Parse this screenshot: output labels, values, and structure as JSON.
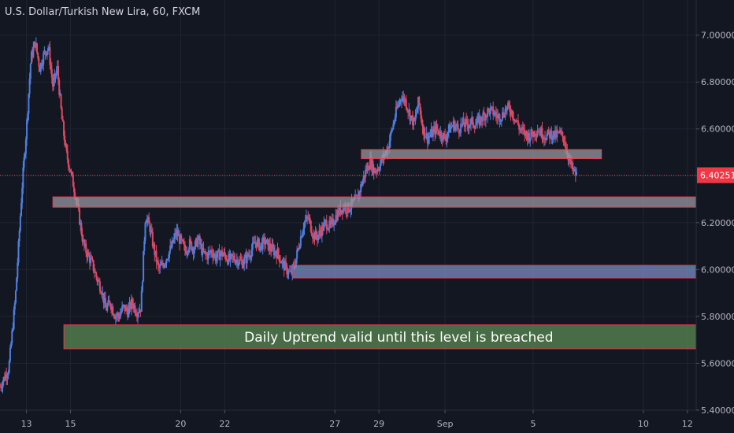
{
  "chart_data": {
    "type": "candlestick",
    "title": "U.S. Dollar/Turkish New Lira, 60, FXCM",
    "y_ticks": [
      5.4,
      5.6,
      5.8,
      6.0,
      6.2,
      6.4,
      6.6,
      6.8,
      7.0
    ],
    "y_tick_labels": [
      "5.40000",
      "5.60000",
      "5.80000",
      "6.00000",
      "6.20000",
      "6.40000",
      "6.60000",
      "6.80000",
      "7.00000"
    ],
    "ylim": [
      5.4,
      7.15
    ],
    "x_ticks": [
      {
        "label": "13",
        "day": 13
      },
      {
        "label": "15",
        "day": 15
      },
      {
        "label": "20",
        "day": 20
      },
      {
        "label": "22",
        "day": 22
      },
      {
        "label": "27",
        "day": 27
      },
      {
        "label": "29",
        "day": 29
      },
      {
        "label": "Sep",
        "day": 32
      },
      {
        "label": "5",
        "day": 36
      },
      {
        "label": "10",
        "day": 41
      },
      {
        "label": "12",
        "day": 43
      }
    ],
    "xlim": [
      11.8,
      43.4
    ],
    "current_price": 6.40251,
    "current_price_label": "6.40251",
    "price_path": [
      [
        11.8,
        5.5
      ],
      [
        12.2,
        5.58
      ],
      [
        12.5,
        5.88
      ],
      [
        12.8,
        6.35
      ],
      [
        13.0,
        6.6
      ],
      [
        13.2,
        6.9
      ],
      [
        13.4,
        6.97
      ],
      [
        13.6,
        6.86
      ],
      [
        13.8,
        6.92
      ],
      [
        14.0,
        6.95
      ],
      [
        14.2,
        6.78
      ],
      [
        14.4,
        6.86
      ],
      [
        14.6,
        6.65
      ],
      [
        14.8,
        6.5
      ],
      [
        15.0,
        6.42
      ],
      [
        15.2,
        6.33
      ],
      [
        15.4,
        6.22
      ],
      [
        15.6,
        6.1
      ],
      [
        15.8,
        6.06
      ],
      [
        16.0,
        6.02
      ],
      [
        16.2,
        5.96
      ],
      [
        16.4,
        5.92
      ],
      [
        16.6,
        5.83
      ],
      [
        16.8,
        5.86
      ],
      [
        17.0,
        5.81
      ],
      [
        17.2,
        5.8
      ],
      [
        17.4,
        5.84
      ],
      [
        17.6,
        5.82
      ],
      [
        17.8,
        5.86
      ],
      [
        18.0,
        5.82
      ],
      [
        18.2,
        5.84
      ],
      [
        18.4,
        6.23
      ],
      [
        18.6,
        6.18
      ],
      [
        18.8,
        6.08
      ],
      [
        19.0,
        6.0
      ],
      [
        19.2,
        6.02
      ],
      [
        19.4,
        6.06
      ],
      [
        19.6,
        6.1
      ],
      [
        19.8,
        6.16
      ],
      [
        20.0,
        6.12
      ],
      [
        20.2,
        6.08
      ],
      [
        20.4,
        6.11
      ],
      [
        20.6,
        6.09
      ],
      [
        20.8,
        6.13
      ],
      [
        21.0,
        6.07
      ],
      [
        21.2,
        6.06
      ],
      [
        21.4,
        6.08
      ],
      [
        21.6,
        6.05
      ],
      [
        21.8,
        6.07
      ],
      [
        22.0,
        6.06
      ],
      [
        22.2,
        6.04
      ],
      [
        22.4,
        6.05
      ],
      [
        22.6,
        6.04
      ],
      [
        22.8,
        6.03
      ],
      [
        23.0,
        6.05
      ],
      [
        23.2,
        6.08
      ],
      [
        23.4,
        6.12
      ],
      [
        23.6,
        6.1
      ],
      [
        23.8,
        6.12
      ],
      [
        24.0,
        6.1
      ],
      [
        24.2,
        6.08
      ],
      [
        24.4,
        6.07
      ],
      [
        24.6,
        6.03
      ],
      [
        24.8,
        6.0
      ],
      [
        25.0,
        5.98
      ],
      [
        25.2,
        6.03
      ],
      [
        25.4,
        6.12
      ],
      [
        25.6,
        6.2
      ],
      [
        25.8,
        6.22
      ],
      [
        26.0,
        6.15
      ],
      [
        26.2,
        6.14
      ],
      [
        26.4,
        6.17
      ],
      [
        26.6,
        6.2
      ],
      [
        26.8,
        6.18
      ],
      [
        27.0,
        6.22
      ],
      [
        27.2,
        6.25
      ],
      [
        27.4,
        6.27
      ],
      [
        27.6,
        6.26
      ],
      [
        27.8,
        6.28
      ],
      [
        28.0,
        6.3
      ],
      [
        28.2,
        6.36
      ],
      [
        28.4,
        6.42
      ],
      [
        28.6,
        6.46
      ],
      [
        28.8,
        6.42
      ],
      [
        29.0,
        6.44
      ],
      [
        29.2,
        6.48
      ],
      [
        29.4,
        6.52
      ],
      [
        29.6,
        6.6
      ],
      [
        29.8,
        6.68
      ],
      [
        30.0,
        6.74
      ],
      [
        30.2,
        6.72
      ],
      [
        30.4,
        6.66
      ],
      [
        30.6,
        6.62
      ],
      [
        30.8,
        6.72
      ],
      [
        31.0,
        6.6
      ],
      [
        31.2,
        6.56
      ],
      [
        31.4,
        6.58
      ],
      [
        31.6,
        6.6
      ],
      [
        31.8,
        6.58
      ],
      [
        32.0,
        6.56
      ],
      [
        32.2,
        6.6
      ],
      [
        32.4,
        6.62
      ],
      [
        32.6,
        6.6
      ],
      [
        32.8,
        6.62
      ],
      [
        33.0,
        6.62
      ],
      [
        33.2,
        6.63
      ],
      [
        33.4,
        6.62
      ],
      [
        33.6,
        6.64
      ],
      [
        33.8,
        6.66
      ],
      [
        34.0,
        6.68
      ],
      [
        34.2,
        6.67
      ],
      [
        34.4,
        6.65
      ],
      [
        34.6,
        6.66
      ],
      [
        34.8,
        6.69
      ],
      [
        35.0,
        6.68
      ],
      [
        35.2,
        6.64
      ],
      [
        35.4,
        6.6
      ],
      [
        35.6,
        6.58
      ],
      [
        35.8,
        6.57
      ],
      [
        36.0,
        6.58
      ],
      [
        36.2,
        6.6
      ],
      [
        36.4,
        6.58
      ],
      [
        36.6,
        6.57
      ],
      [
        36.8,
        6.58
      ],
      [
        37.0,
        6.57
      ],
      [
        37.2,
        6.58
      ],
      [
        37.4,
        6.56
      ],
      [
        37.6,
        6.48
      ],
      [
        37.8,
        6.42
      ],
      [
        38.0,
        6.4
      ]
    ],
    "zones": [
      {
        "x0": 28.2,
        "x1": 39.1,
        "y0": 6.473,
        "y1": 6.512,
        "fill": "#9598a1",
        "stroke": "#f23645"
      },
      {
        "x0": 14.2,
        "x1": 43.4,
        "y0": 6.266,
        "y1": 6.31,
        "fill": "#9598a1",
        "stroke": "#f23645"
      },
      {
        "x0": 25.1,
        "x1": 43.4,
        "y0": 5.964,
        "y1": 6.018,
        "fill": "#7a8cc4",
        "stroke": "#f23645"
      },
      {
        "x0": 14.7,
        "x1": 43.4,
        "y0": 5.662,
        "y1": 5.764,
        "fill": "#5b8a52",
        "stroke": "#f23645"
      }
    ],
    "annotation": {
      "text": "Daily Uptrend valid until this level is breached",
      "x": 29.9,
      "y": 5.712
    },
    "colors": {
      "background": "#131722",
      "grid": "#1e2431",
      "up": "#4e7fdf",
      "down": "#e0475e",
      "price_line": "#f23645",
      "axis_text": "#b2b5be"
    }
  }
}
